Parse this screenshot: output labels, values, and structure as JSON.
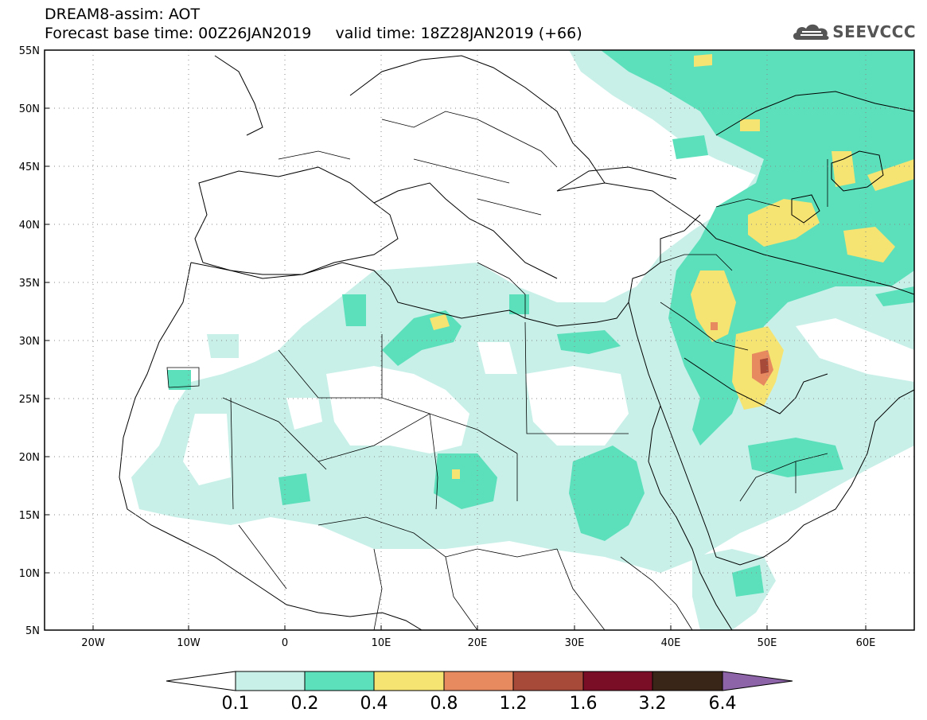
{
  "title": {
    "line1": "DREAM8-assim: AOT",
    "line2": "Forecast base time: 00Z26JAN2019     valid time: 18Z28JAN2019 (+66)"
  },
  "logo": {
    "text": "SEEVCCC",
    "icon": "cloud-icon"
  },
  "map": {
    "lon_range": [
      -25,
      65
    ],
    "lat_range": [
      5,
      55
    ],
    "lat_ticks": [
      {
        "value": 55,
        "label": "55N"
      },
      {
        "value": 50,
        "label": "50N"
      },
      {
        "value": 45,
        "label": "45N"
      },
      {
        "value": 40,
        "label": "40N"
      },
      {
        "value": 35,
        "label": "35N"
      },
      {
        "value": 30,
        "label": "30N"
      },
      {
        "value": 25,
        "label": "25N"
      },
      {
        "value": 20,
        "label": "20N"
      },
      {
        "value": 15,
        "label": "15N"
      },
      {
        "value": 10,
        "label": "10N"
      },
      {
        "value": 5,
        "label": "5N"
      }
    ],
    "lon_ticks": [
      {
        "value": -20,
        "label": "20W"
      },
      {
        "value": -10,
        "label": "10W"
      },
      {
        "value": 0,
        "label": "0"
      },
      {
        "value": 10,
        "label": "10E"
      },
      {
        "value": 20,
        "label": "20E"
      },
      {
        "value": 30,
        "label": "30E"
      },
      {
        "value": 40,
        "label": "40E"
      },
      {
        "value": 50,
        "label": "50E"
      },
      {
        "value": 60,
        "label": "60E"
      }
    ]
  },
  "colorbar": {
    "colors": [
      "#c8f0e8",
      "#5ce0bc",
      "#f5e472",
      "#e78a60",
      "#a84a3a",
      "#7a0e26",
      "#3a2618",
      "#8e64a8"
    ],
    "labels": [
      "0.1",
      "0.2",
      "0.4",
      "0.8",
      "1.2",
      "1.6",
      "3.2",
      "6.4"
    ]
  }
}
